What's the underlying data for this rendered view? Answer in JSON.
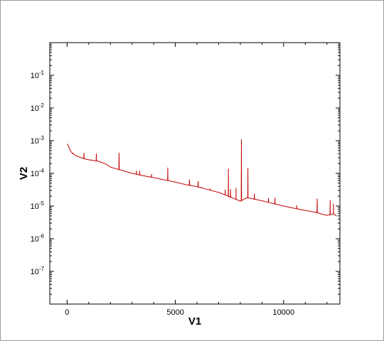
{
  "chart_data": {
    "type": "line",
    "title": "",
    "xlabel": "V1",
    "ylabel": "V2",
    "xlim": [
      -800,
      12600
    ],
    "ylim": [
      1e-08,
      1
    ],
    "y_scale": "log",
    "grid": false,
    "legend": "none",
    "line_color": "#c00000",
    "x_ticks": [
      {
        "value": 0,
        "label": "0"
      },
      {
        "value": 5000,
        "label": "5000"
      },
      {
        "value": 10000,
        "label": "10000"
      }
    ],
    "y_ticks": [
      {
        "value": 0.1,
        "base": "10",
        "exp": "-1"
      },
      {
        "value": 0.01,
        "base": "10",
        "exp": "-2"
      },
      {
        "value": 0.001,
        "base": "10",
        "exp": "-3"
      },
      {
        "value": 0.0001,
        "base": "10",
        "exp": "-4"
      },
      {
        "value": 1e-05,
        "base": "10",
        "exp": "-5"
      },
      {
        "value": 1e-06,
        "base": "10",
        "exp": "-6"
      },
      {
        "value": 1e-07,
        "base": "10",
        "exp": "-7"
      }
    ],
    "series": [
      {
        "x": [
          0,
          50,
          100,
          150,
          200,
          300,
          400,
          500,
          600,
          800,
          1000,
          1200,
          1500,
          1800,
          2000,
          2500,
          3000,
          3500,
          4000,
          4500,
          5000,
          5500,
          6000,
          6500,
          7000,
          7300,
          7500,
          7800,
          8000,
          8300,
          8500,
          9000,
          9500,
          10000,
          10500,
          11000,
          11500,
          11800,
          12000,
          12200,
          12300,
          12450
        ],
        "y": [
          0.0008,
          0.0007,
          0.0006,
          0.0005,
          0.00044,
          0.00039,
          0.00035,
          0.00033,
          0.00031,
          0.00028,
          0.00026,
          0.00025,
          0.00023,
          0.00019,
          0.000155,
          0.000125,
          0.0001,
          8.5e-05,
          7.4e-05,
          6.3e-05,
          5.4e-05,
          4.5e-05,
          3.9e-05,
          3.2e-05,
          2.6e-05,
          2.2e-05,
          1.9e-05,
          1.6e-05,
          1.4e-05,
          1.8e-05,
          1.7e-05,
          1.45e-05,
          1.2e-05,
          1e-05,
          8.5e-06,
          7.3e-06,
          6.4e-06,
          5.6e-06,
          5.2e-06,
          5.5e-06,
          5.8e-06,
          4.9e-06
        ],
        "spikes": [
          {
            "x": 280,
            "y": 0.00041
          },
          {
            "x": 780,
            "y": 0.00042
          },
          {
            "x": 1350,
            "y": 0.0004
          },
          {
            "x": 2400,
            "y": 0.00043
          },
          {
            "x": 3200,
            "y": 0.00012
          },
          {
            "x": 3350,
            "y": 0.00012
          },
          {
            "x": 3900,
            "y": 9.5e-05
          },
          {
            "x": 4650,
            "y": 0.00015
          },
          {
            "x": 5650,
            "y": 6.5e-05
          },
          {
            "x": 6050,
            "y": 5.8e-05
          },
          {
            "x": 6200,
            "y": 3.8e-05
          },
          {
            "x": 6600,
            "y": 3.4e-05
          },
          {
            "x": 7000,
            "y": 2.6e-05
          },
          {
            "x": 7300,
            "y": 3.2e-05
          },
          {
            "x": 7450,
            "y": 0.00014
          },
          {
            "x": 7550,
            "y": 3.3e-05
          },
          {
            "x": 7800,
            "y": 3.6e-05
          },
          {
            "x": 8050,
            "y": 0.0011
          },
          {
            "x": 8350,
            "y": 0.000145
          },
          {
            "x": 8650,
            "y": 2.4e-05
          },
          {
            "x": 9300,
            "y": 1.75e-05
          },
          {
            "x": 9600,
            "y": 1.8e-05
          },
          {
            "x": 10600,
            "y": 1.05e-05
          },
          {
            "x": 11550,
            "y": 1.7e-05
          },
          {
            "x": 12150,
            "y": 1.5e-05
          },
          {
            "x": 12300,
            "y": 1.2e-05
          }
        ]
      }
    ]
  }
}
